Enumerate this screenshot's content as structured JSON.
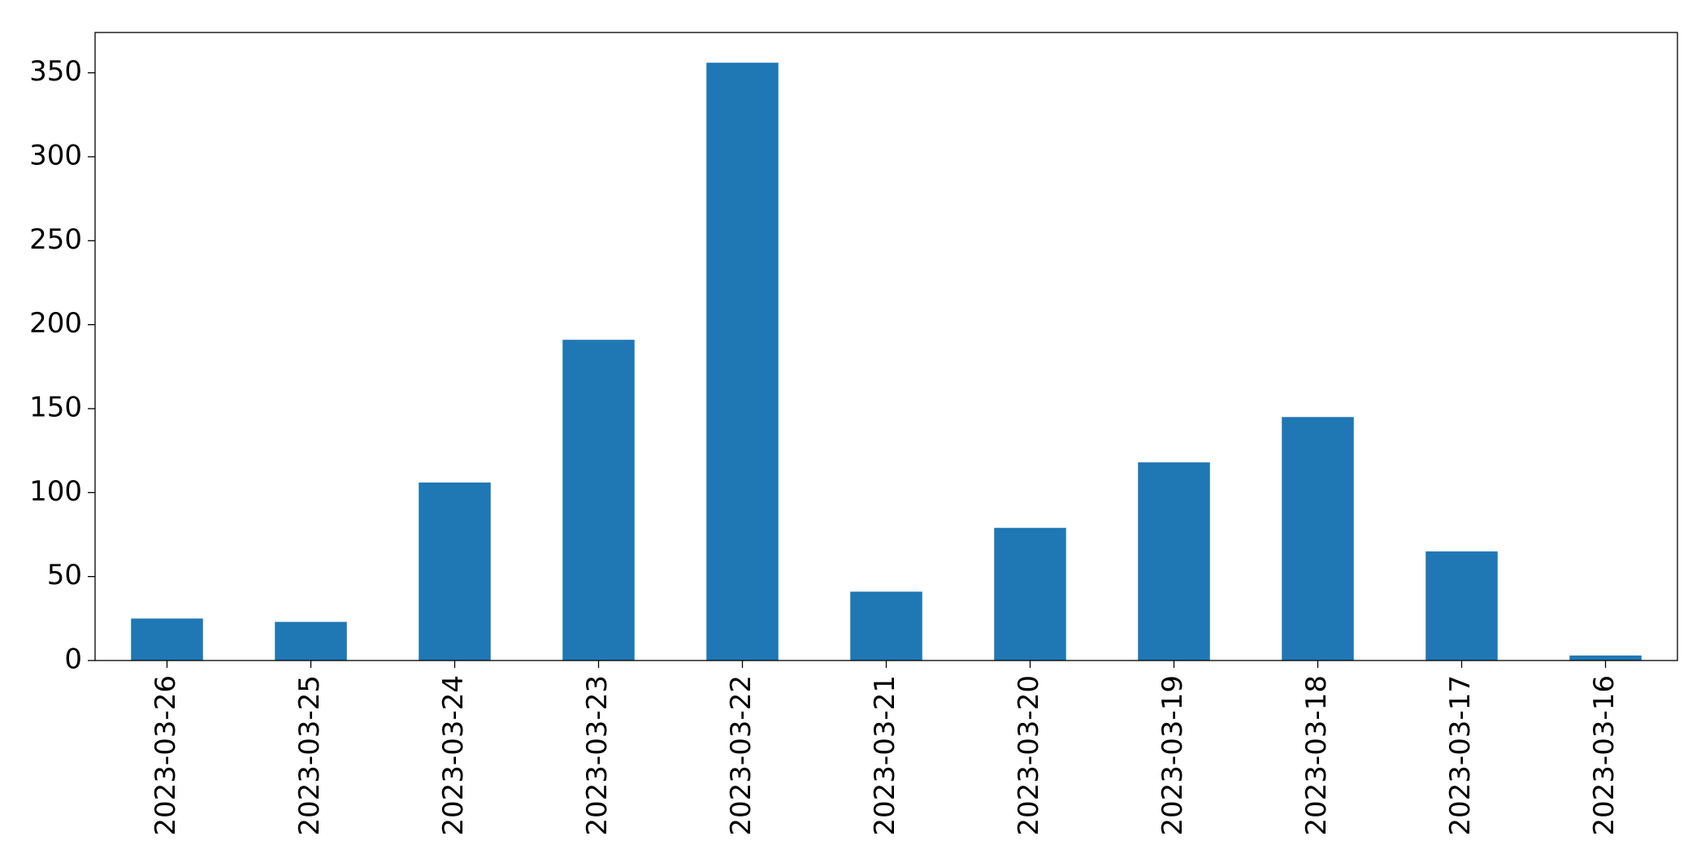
{
  "chart_data": {
    "type": "bar",
    "categories": [
      "2023-03-26",
      "2023-03-25",
      "2023-03-24",
      "2023-03-23",
      "2023-03-22",
      "2023-03-21",
      "2023-03-20",
      "2023-03-19",
      "2023-03-18",
      "2023-03-17",
      "2023-03-16"
    ],
    "values": [
      25,
      23,
      106,
      191,
      356,
      41,
      79,
      118,
      145,
      65,
      3
    ],
    "color": "#1f77b4",
    "ylim": [
      0,
      374
    ],
    "yticks": [
      0,
      50,
      100,
      150,
      200,
      250,
      300,
      350
    ],
    "grid": false
  }
}
